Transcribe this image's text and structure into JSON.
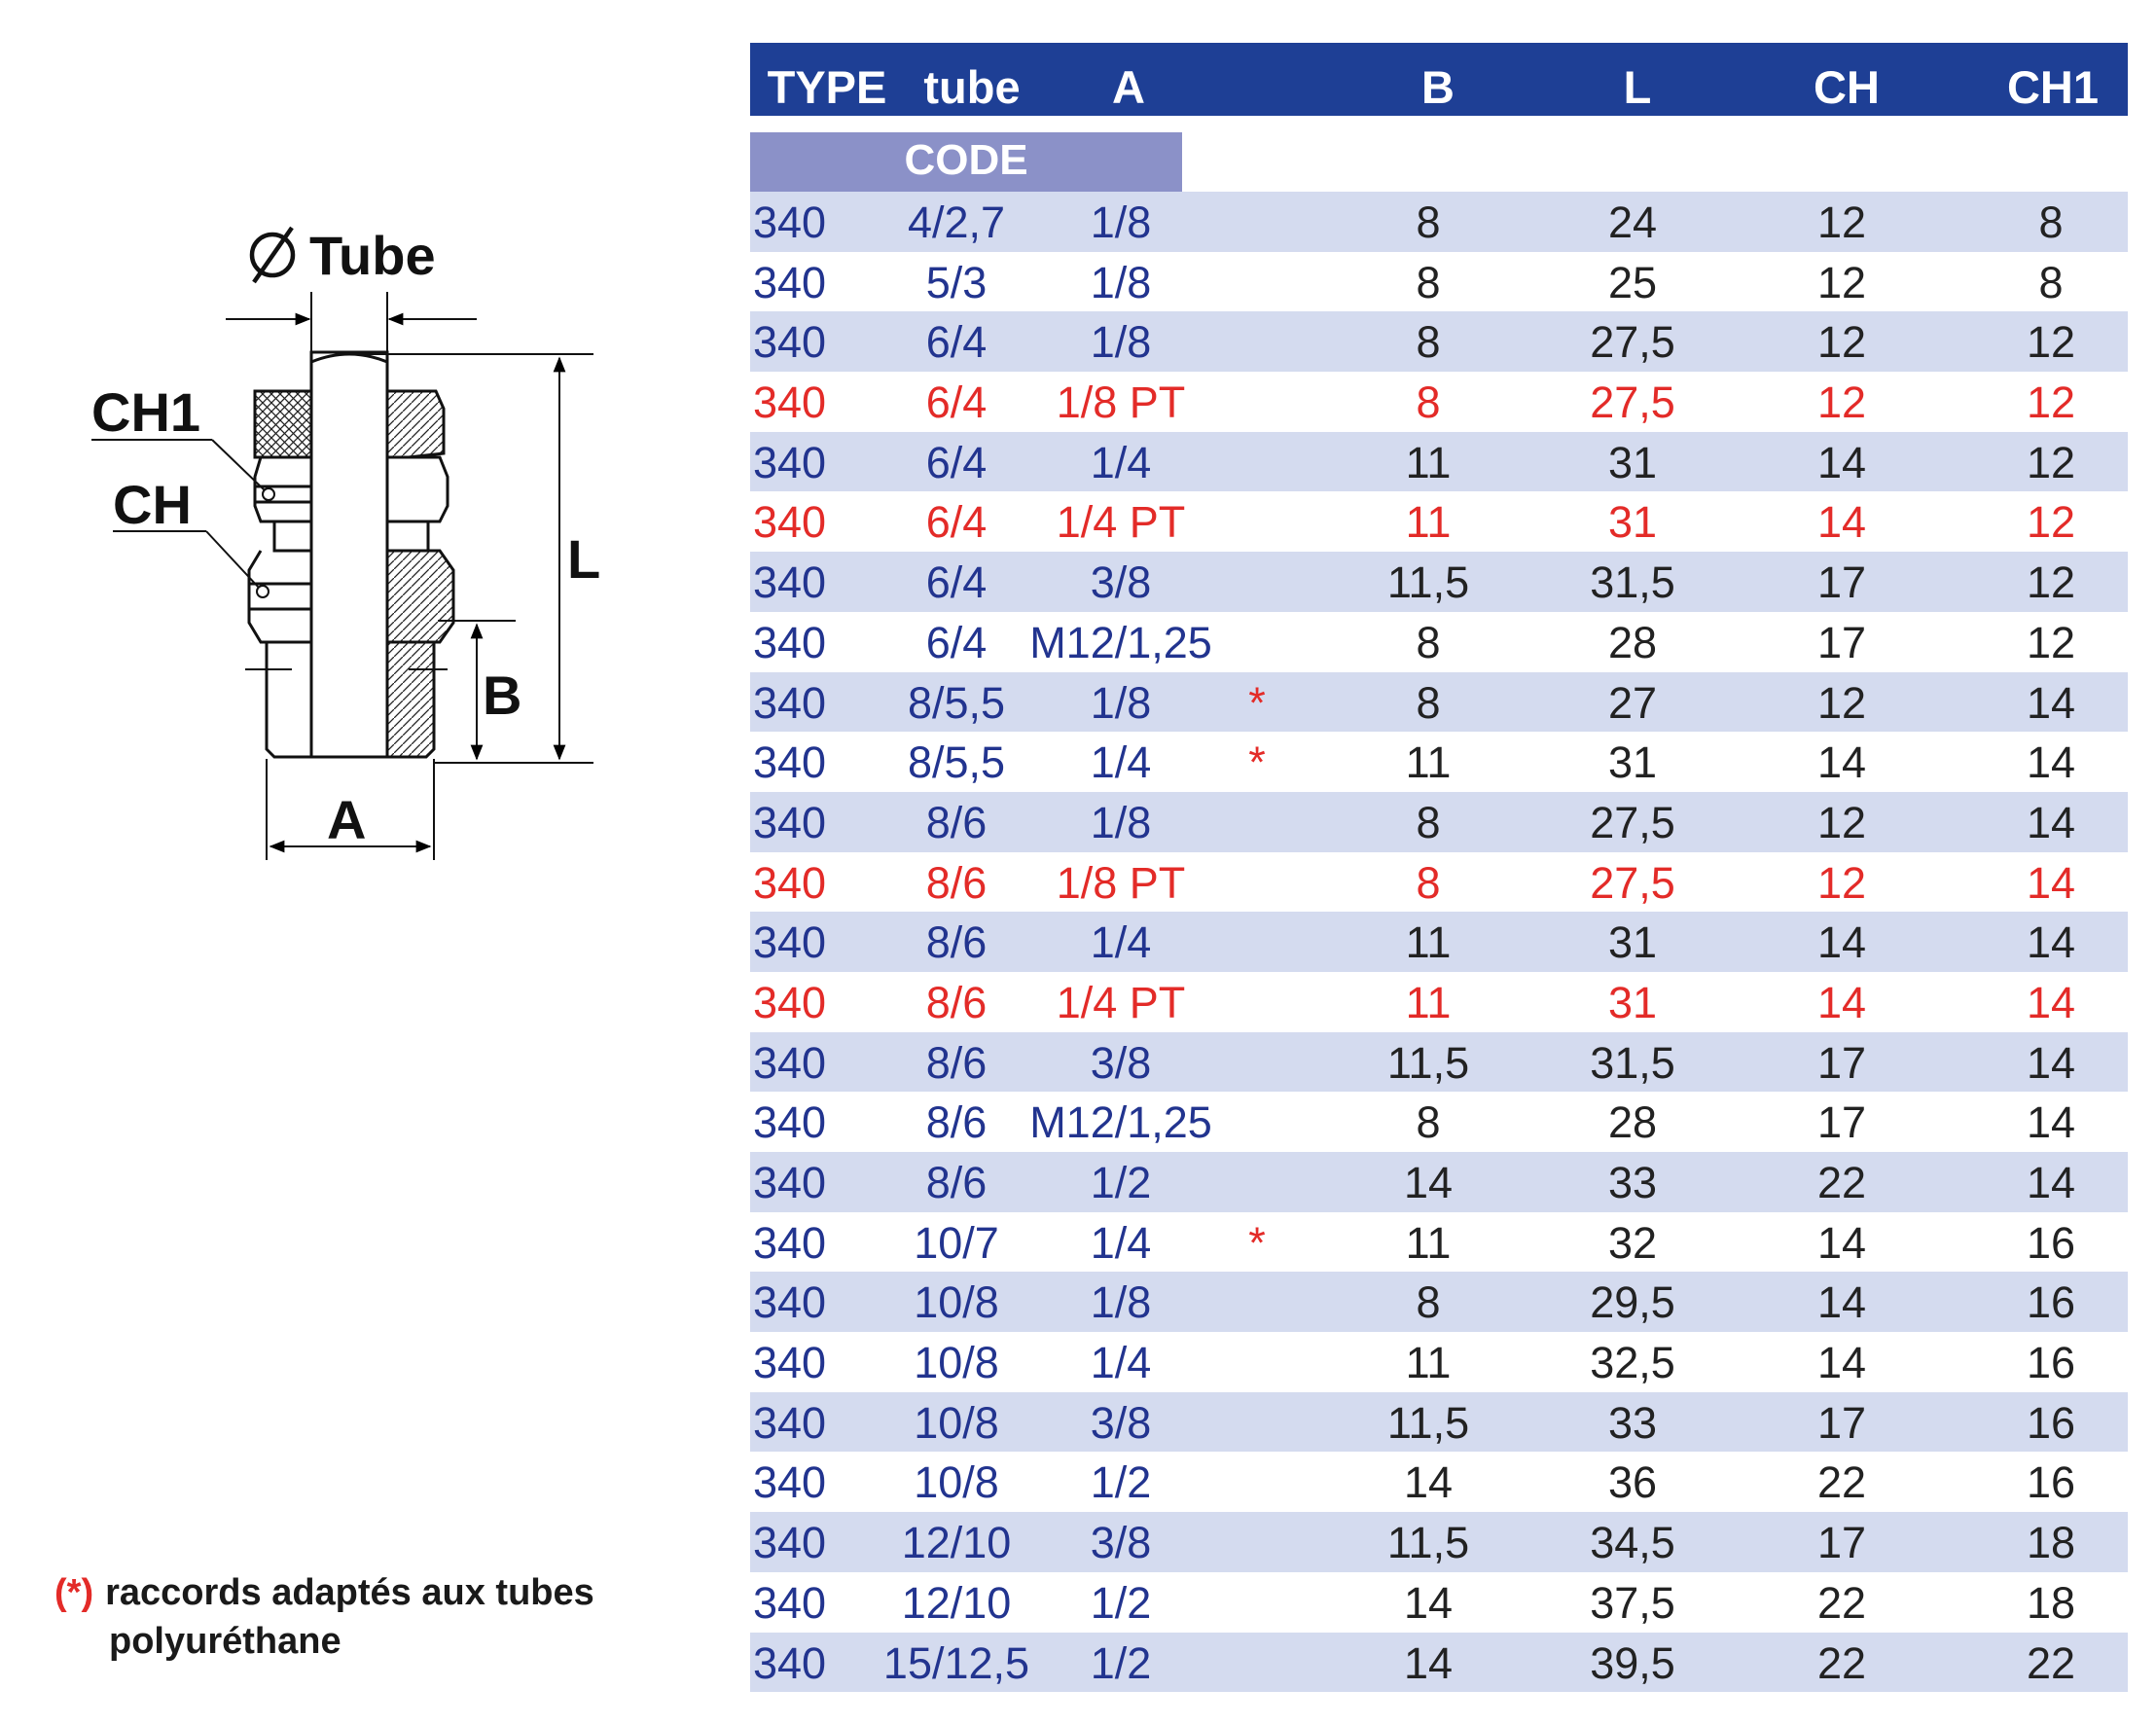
{
  "drawing": {
    "labels": {
      "tube": "Tube",
      "ch1": "CH1",
      "ch": "CH",
      "l": "L",
      "b": "B",
      "a": "A"
    },
    "icons": [
      "diameter-symbol-icon"
    ]
  },
  "table": {
    "headers": [
      "TYPE",
      "tube",
      "A",
      "B",
      "L",
      "CH",
      "CH1"
    ],
    "subheader": "CODE",
    "rows": [
      {
        "type": "340",
        "tube": "4/2,7",
        "a": "1/8",
        "star": "",
        "b": "8",
        "l": "24",
        "ch": "12",
        "ch1": "8",
        "highlight": false
      },
      {
        "type": "340",
        "tube": "5/3",
        "a": "1/8",
        "star": "",
        "b": "8",
        "l": "25",
        "ch": "12",
        "ch1": "8",
        "highlight": false
      },
      {
        "type": "340",
        "tube": "6/4",
        "a": "1/8",
        "star": "",
        "b": "8",
        "l": "27,5",
        "ch": "12",
        "ch1": "12",
        "highlight": false
      },
      {
        "type": "340",
        "tube": "6/4",
        "a": "1/8 PT",
        "star": "",
        "b": "8",
        "l": "27,5",
        "ch": "12",
        "ch1": "12",
        "highlight": true
      },
      {
        "type": "340",
        "tube": "6/4",
        "a": "1/4",
        "star": "",
        "b": "11",
        "l": "31",
        "ch": "14",
        "ch1": "12",
        "highlight": false
      },
      {
        "type": "340",
        "tube": "6/4",
        "a": "1/4 PT",
        "star": "",
        "b": "11",
        "l": "31",
        "ch": "14",
        "ch1": "12",
        "highlight": true
      },
      {
        "type": "340",
        "tube": "6/4",
        "a": "3/8",
        "star": "",
        "b": "11,5",
        "l": "31,5",
        "ch": "17",
        "ch1": "12",
        "highlight": false
      },
      {
        "type": "340",
        "tube": "6/4",
        "a": "M12/1,25",
        "star": "",
        "b": "8",
        "l": "28",
        "ch": "17",
        "ch1": "12",
        "highlight": false
      },
      {
        "type": "340",
        "tube": "8/5,5",
        "a": "1/8",
        "star": "*",
        "b": "8",
        "l": "27",
        "ch": "12",
        "ch1": "14",
        "highlight": false
      },
      {
        "type": "340",
        "tube": "8/5,5",
        "a": "1/4",
        "star": "*",
        "b": "11",
        "l": "31",
        "ch": "14",
        "ch1": "14",
        "highlight": false
      },
      {
        "type": "340",
        "tube": "8/6",
        "a": "1/8",
        "star": "",
        "b": "8",
        "l": "27,5",
        "ch": "12",
        "ch1": "14",
        "highlight": false
      },
      {
        "type": "340",
        "tube": "8/6",
        "a": "1/8 PT",
        "star": "",
        "b": "8",
        "l": "27,5",
        "ch": "12",
        "ch1": "14",
        "highlight": true
      },
      {
        "type": "340",
        "tube": "8/6",
        "a": "1/4",
        "star": "",
        "b": "11",
        "l": "31",
        "ch": "14",
        "ch1": "14",
        "highlight": false
      },
      {
        "type": "340",
        "tube": "8/6",
        "a": "1/4 PT",
        "star": "",
        "b": "11",
        "l": "31",
        "ch": "14",
        "ch1": "14",
        "highlight": true
      },
      {
        "type": "340",
        "tube": "8/6",
        "a": "3/8",
        "star": "",
        "b": "11,5",
        "l": "31,5",
        "ch": "17",
        "ch1": "14",
        "highlight": false
      },
      {
        "type": "340",
        "tube": "8/6",
        "a": "M12/1,25",
        "star": "",
        "b": "8",
        "l": "28",
        "ch": "17",
        "ch1": "14",
        "highlight": false
      },
      {
        "type": "340",
        "tube": "8/6",
        "a": "1/2",
        "star": "",
        "b": "14",
        "l": "33",
        "ch": "22",
        "ch1": "14",
        "highlight": false
      },
      {
        "type": "340",
        "tube": "10/7",
        "a": "1/4",
        "star": "*",
        "b": "11",
        "l": "32",
        "ch": "14",
        "ch1": "16",
        "highlight": false
      },
      {
        "type": "340",
        "tube": "10/8",
        "a": "1/8",
        "star": "",
        "b": "8",
        "l": "29,5",
        "ch": "14",
        "ch1": "16",
        "highlight": false
      },
      {
        "type": "340",
        "tube": "10/8",
        "a": "1/4",
        "star": "",
        "b": "11",
        "l": "32,5",
        "ch": "14",
        "ch1": "16",
        "highlight": false
      },
      {
        "type": "340",
        "tube": "10/8",
        "a": "3/8",
        "star": "",
        "b": "11,5",
        "l": "33",
        "ch": "17",
        "ch1": "16",
        "highlight": false
      },
      {
        "type": "340",
        "tube": "10/8",
        "a": "1/2",
        "star": "",
        "b": "14",
        "l": "36",
        "ch": "22",
        "ch1": "16",
        "highlight": false
      },
      {
        "type": "340",
        "tube": "12/10",
        "a": "3/8",
        "star": "",
        "b": "11,5",
        "l": "34,5",
        "ch": "17",
        "ch1": "18",
        "highlight": false
      },
      {
        "type": "340",
        "tube": "12/10",
        "a": "1/2",
        "star": "",
        "b": "14",
        "l": "37,5",
        "ch": "22",
        "ch1": "18",
        "highlight": false
      },
      {
        "type": "340",
        "tube": "15/12,5",
        "a": "1/2",
        "star": "",
        "b": "14",
        "l": "39,5",
        "ch": "22",
        "ch1": "22",
        "highlight": false
      }
    ]
  },
  "footnote": {
    "marker": "(*)",
    "line1": "raccords adaptés aux tubes",
    "line2": "polyuréthane"
  },
  "colors": {
    "header_bg": "#1e3f95",
    "code_bg": "#8b91c8",
    "row_shade": "#d4dbef",
    "text_blue": "#22348f",
    "text_red": "#e32b28"
  }
}
